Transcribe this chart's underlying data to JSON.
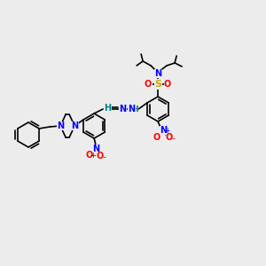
{
  "bg_color": "#ececec",
  "bond_color": "#000000",
  "atom_colors": {
    "N": "#0000ff",
    "O": "#ff0000",
    "S": "#ccaa00",
    "H_cyan": "#008080",
    "NO2_N": "#0000ff",
    "NO2_O": "#ff0000"
  },
  "font_size_atom": 7.5,
  "font_size_small": 6.5
}
